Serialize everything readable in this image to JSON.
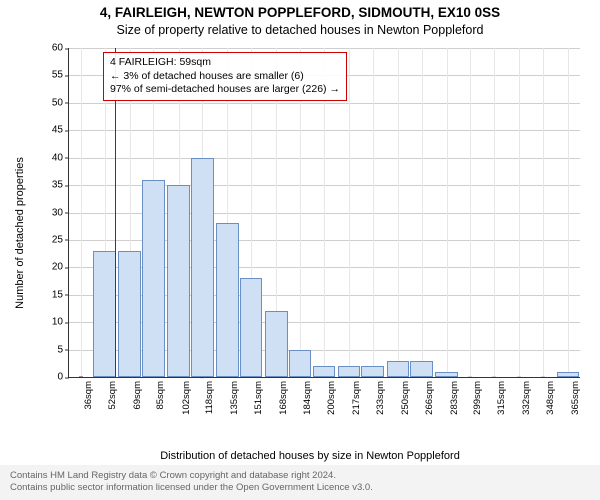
{
  "title": {
    "line1": "4, FAIRLEIGH, NEWTON POPPLEFORD, SIDMOUTH, EX10 0SS",
    "line2": "Size of property relative to detached houses in Newton Poppleford",
    "fontsize_main": 13.5,
    "fontsize_sub": 12.5
  },
  "axes": {
    "ylabel": "Number of detached properties",
    "xlabel": "Distribution of detached houses by size in Newton Poppleford",
    "ylim": [
      0,
      60
    ],
    "ytick_step": 5,
    "yticks": [
      0,
      5,
      10,
      15,
      20,
      25,
      30,
      35,
      40,
      45,
      50,
      55,
      60
    ],
    "xticks": [
      36,
      52,
      69,
      85,
      102,
      118,
      135,
      151,
      168,
      184,
      200,
      217,
      233,
      250,
      266,
      283,
      299,
      315,
      332,
      348,
      365
    ],
    "xtick_unit": "sqm",
    "grid_color": "#cfcfcf",
    "axis_color": "#333333",
    "label_fontsize": 11,
    "tick_fontsize": 10
  },
  "histogram": {
    "type": "histogram",
    "bin_centers": [
      36,
      52,
      69,
      85,
      102,
      118,
      135,
      151,
      168,
      184,
      200,
      217,
      233,
      250,
      266,
      283,
      299,
      315,
      332,
      348,
      365
    ],
    "counts": [
      0,
      23,
      23,
      36,
      35,
      40,
      28,
      18,
      12,
      5,
      2,
      2,
      2,
      3,
      3,
      1,
      0,
      0,
      0,
      0,
      1
    ],
    "bar_fill": "#cfe0f5",
    "bar_stroke": "#6a8fc4",
    "bar_relative_width": 0.95,
    "background_color": "#ffffff"
  },
  "marker": {
    "value_sqm": 59,
    "color": "#cc0000"
  },
  "annotation": {
    "line1": "4 FAIRLEIGH: 59sqm",
    "line2": "← 3% of detached houses are smaller (6)",
    "line3": "97% of semi-detached houses are larger (226) →",
    "border_color": "#cc0000",
    "fontsize": 10.5
  },
  "footer": {
    "line1": "Contains HM Land Registry data © Crown copyright and database right 2024.",
    "line2": "Contains public sector information licensed under the Open Government Licence v3.0.",
    "bg": "#f3f3f3",
    "color": "#666666",
    "fontsize": 9.5
  }
}
